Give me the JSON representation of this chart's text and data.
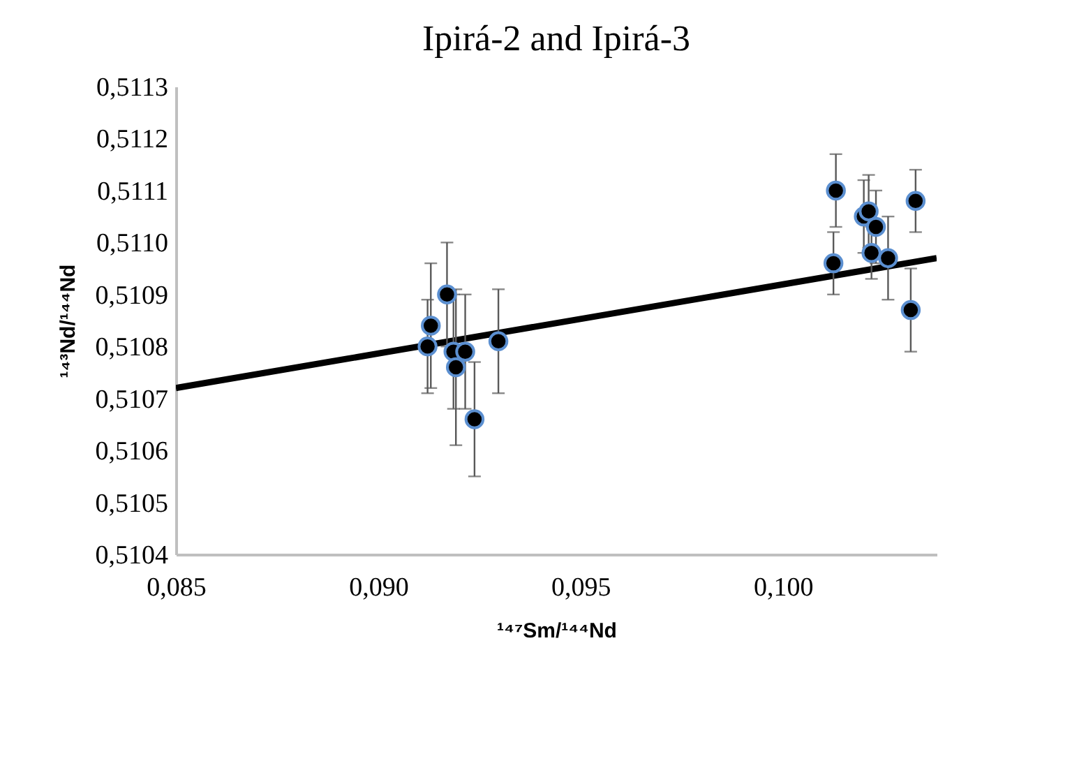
{
  "chart_data": {
    "type": "scatter",
    "title": "Ipirá-2 and Ipirá-3",
    "xlabel": "¹⁴⁷Sm/¹⁴⁴Nd",
    "ylabel": "¹⁴³Nd/¹⁴⁴Nd",
    "xlim": [
      0.085,
      0.1038
    ],
    "xticks": [
      {
        "value": 0.085,
        "label": "0,085"
      },
      {
        "value": 0.09,
        "label": "0,090"
      },
      {
        "value": 0.095,
        "label": "0,095"
      },
      {
        "value": 0.1,
        "label": "0,100"
      }
    ],
    "ylim": [
      0.5104,
      0.5113
    ],
    "yticks": [
      {
        "value": 0.5104,
        "label": "0,5104"
      },
      {
        "value": 0.5105,
        "label": "0,5105"
      },
      {
        "value": 0.5106,
        "label": "0,5106"
      },
      {
        "value": 0.5107,
        "label": "0,5107"
      },
      {
        "value": 0.5108,
        "label": "0,5108"
      },
      {
        "value": 0.5109,
        "label": "0,5109"
      },
      {
        "value": 0.511,
        "label": "0,5110"
      },
      {
        "value": 0.5111,
        "label": "0,5111"
      },
      {
        "value": 0.5112,
        "label": "0,5112"
      },
      {
        "value": 0.5113,
        "label": "0,5113"
      }
    ],
    "grid": false,
    "marker": "circle",
    "series": [
      {
        "color": "#000000",
        "x": [
          0.09122,
          0.0913,
          0.0917,
          0.09186,
          0.09192,
          0.09215,
          0.09238,
          0.09297,
          0.10131,
          0.10125,
          0.102,
          0.10212,
          0.1023,
          0.10219,
          0.1026,
          0.10316,
          0.10328
        ],
        "values": [
          0.5108,
          0.51084,
          0.5109,
          0.51079,
          0.51076,
          0.51079,
          0.51066,
          0.51081,
          0.5111,
          0.51096,
          0.51105,
          0.51106,
          0.51103,
          0.51098,
          0.51097,
          0.51087,
          0.51108
        ],
        "errors": [
          9e-05,
          0.00012,
          0.0001,
          0.00011,
          0.00015,
          0.00011,
          0.00011,
          0.0001,
          7e-05,
          6e-05,
          7e-05,
          7e-05,
          7e-05,
          5e-05,
          8e-05,
          8e-05,
          6e-05
        ]
      },
      {
        "type": "line",
        "color": "#000000",
        "line_style": "solid",
        "marker": "none",
        "x": [
          0.085,
          0.1038
        ],
        "values": [
          0.51072,
          0.51097
        ]
      }
    ]
  }
}
